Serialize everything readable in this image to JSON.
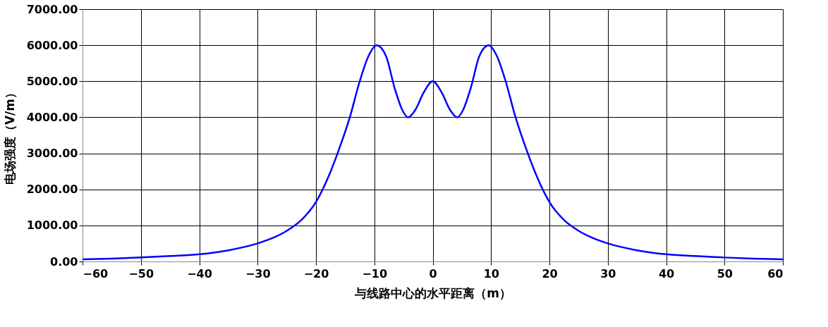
{
  "chart_data": {
    "type": "line",
    "xlabel": "与线路中心的水平距离（m）",
    "ylabel": "电场强度（V/m）",
    "x": [
      -60,
      -55,
      -50,
      -45,
      -40,
      -35,
      -30,
      -27,
      -25,
      -22.5,
      -20,
      -18,
      -16.3,
      -14.2,
      -12.5,
      -11,
      -9.6,
      -8,
      -6.5,
      -5.2,
      -4.2,
      -3,
      -1.5,
      0,
      1.5,
      3,
      4.2,
      5.2,
      6.5,
      8,
      9.6,
      11,
      12.5,
      14.2,
      16.3,
      18,
      20,
      22.5,
      25,
      27,
      30,
      35,
      40,
      45,
      50,
      55,
      60
    ],
    "series": [
      {
        "color": "#0000ff",
        "values": [
          60,
          80,
          110,
          150,
          200,
          310,
          500,
          680,
          850,
          1150,
          1650,
          2300,
          3000,
          4000,
          5000,
          5700,
          6000,
          5700,
          4800,
          4200,
          4000,
          4200,
          4700,
          5000,
          4700,
          4200,
          4000,
          4200,
          4800,
          5700,
          6000,
          5700,
          5000,
          4000,
          3000,
          2300,
          1650,
          1150,
          850,
          680,
          500,
          310,
          200,
          150,
          110,
          80,
          60
        ]
      }
    ],
    "xlim": [
      -60,
      60
    ],
    "xticks": [
      -60,
      -50,
      -40,
      -30,
      -20,
      -10,
      0,
      10,
      20,
      30,
      40,
      50,
      60
    ],
    "ylim": [
      0,
      7000
    ],
    "yticks": [
      {
        "value": 0,
        "label": "0.00"
      },
      {
        "value": 1000,
        "label": "1000.00"
      },
      {
        "value": 2000,
        "label": "2000.00"
      },
      {
        "value": 3000,
        "label": "3000.00"
      },
      {
        "value": 4000,
        "label": "4000.00"
      },
      {
        "value": 5000,
        "label": "5000.00"
      },
      {
        "value": 6000,
        "label": "6000.00"
      },
      {
        "value": 7000,
        "label": "7000.00"
      }
    ],
    "grid": true,
    "marker": "none",
    "line_style": "solid",
    "legend": false
  }
}
